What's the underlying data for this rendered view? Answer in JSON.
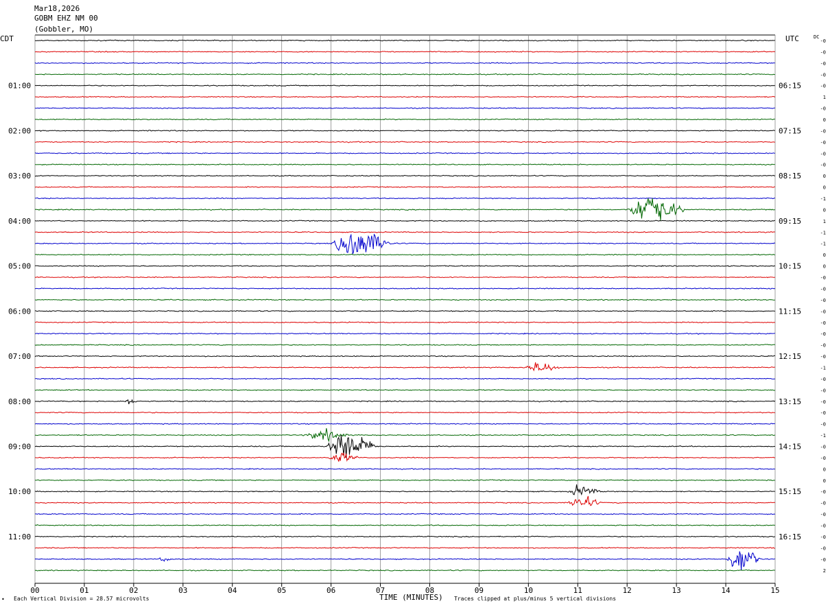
{
  "header": {
    "date": "Mar18,2026",
    "station": "GOBM EHZ NM 00",
    "location": "(Gobbler, MO)"
  },
  "left_axis_title": "CDT",
  "right_axis_title": "UTC",
  "dc_label": "DC",
  "footer": {
    "scale": "Each Vertical Division =   28.57 microvolts",
    "clip": "Traces clipped at plus/minus 5 vertical divisions",
    "corner_mark": "•"
  },
  "colors": {
    "cycle": [
      "#000000",
      "#dd0000",
      "#0000cc",
      "#006600"
    ],
    "grid": "#888888"
  },
  "chart_data": {
    "type": "helicorder",
    "xlabel": "TIME (MINUTES)",
    "xlim": [
      0,
      15
    ],
    "x_ticks": [
      "00",
      "01",
      "02",
      "03",
      "04",
      "05",
      "06",
      "07",
      "08",
      "09",
      "10",
      "11",
      "12",
      "13",
      "14",
      "15"
    ],
    "rows_per_hour": 4,
    "row_count": 48,
    "left_labels": [
      {
        "row": 4,
        "text": "01:00"
      },
      {
        "row": 8,
        "text": "02:00"
      },
      {
        "row": 12,
        "text": "03:00"
      },
      {
        "row": 16,
        "text": "04:00"
      },
      {
        "row": 20,
        "text": "05:00"
      },
      {
        "row": 24,
        "text": "06:00"
      },
      {
        "row": 28,
        "text": "07:00"
      },
      {
        "row": 32,
        "text": "08:00"
      },
      {
        "row": 36,
        "text": "09:00"
      },
      {
        "row": 40,
        "text": "10:00"
      },
      {
        "row": 44,
        "text": "11:00"
      }
    ],
    "right_labels": [
      {
        "row": 4,
        "text": "06:15"
      },
      {
        "row": 8,
        "text": "07:15"
      },
      {
        "row": 12,
        "text": "08:15"
      },
      {
        "row": 16,
        "text": "09:15"
      },
      {
        "row": 20,
        "text": "10:15"
      },
      {
        "row": 24,
        "text": "11:15"
      },
      {
        "row": 28,
        "text": "12:15"
      },
      {
        "row": 32,
        "text": "13:15"
      },
      {
        "row": 36,
        "text": "14:15"
      },
      {
        "row": 40,
        "text": "15:15"
      },
      {
        "row": 44,
        "text": "16:15"
      }
    ],
    "dc_offsets": [
      "-0",
      "-0",
      "-0",
      "-0",
      "-0",
      "1",
      "-0",
      "0",
      "-0",
      "-0",
      "-0",
      "-0",
      "0",
      "0",
      "-1",
      "0",
      "1",
      "-1",
      "-1",
      "0",
      "0",
      "-0",
      "-0",
      "-0",
      "-0",
      "-0",
      "-0",
      "-0",
      "-0",
      "-1",
      "-0",
      "-0",
      "-0",
      "-0",
      "-0",
      "-1",
      "-0",
      "-0",
      "0",
      "0",
      "-0",
      "-0",
      "-0",
      "-0",
      "-0",
      "-0",
      "-0",
      "2"
    ],
    "events": [
      {
        "row": 15,
        "start_min": 12.0,
        "end_min": 13.2,
        "peak_min": 12.4,
        "amplitude": 5,
        "clipped": true
      },
      {
        "row": 18,
        "start_min": 6.0,
        "end_min": 7.3,
        "peak_min": 6.5,
        "amplitude": 5,
        "clipped": true
      },
      {
        "row": 29,
        "start_min": 9.9,
        "end_min": 10.7,
        "peak_min": 10.2,
        "amplitude": 1.6,
        "clipped": false
      },
      {
        "row": 32,
        "start_min": 1.8,
        "end_min": 2.1,
        "peak_min": 1.9,
        "amplitude": 0.8,
        "clipped": false
      },
      {
        "row": 35,
        "start_min": 5.4,
        "end_min": 6.4,
        "peak_min": 5.9,
        "amplitude": 1.5,
        "clipped": false
      },
      {
        "row": 36,
        "start_min": 5.9,
        "end_min": 7.0,
        "peak_min": 6.2,
        "amplitude": 5,
        "clipped": true
      },
      {
        "row": 37,
        "start_min": 5.9,
        "end_min": 6.6,
        "peak_min": 6.2,
        "amplitude": 1.5,
        "clipped": false
      },
      {
        "row": 40,
        "start_min": 10.8,
        "end_min": 11.5,
        "peak_min": 11.0,
        "amplitude": 1.6,
        "clipped": false
      },
      {
        "row": 41,
        "start_min": 10.8,
        "end_min": 11.5,
        "peak_min": 11.0,
        "amplitude": 2.2,
        "clipped": false
      },
      {
        "row": 46,
        "start_min": 2.5,
        "end_min": 2.8,
        "peak_min": 2.6,
        "amplitude": 0.7,
        "clipped": false
      },
      {
        "row": 46,
        "start_min": 14.0,
        "end_min": 14.7,
        "peak_min": 14.3,
        "amplitude": 5,
        "clipped": true
      }
    ]
  }
}
